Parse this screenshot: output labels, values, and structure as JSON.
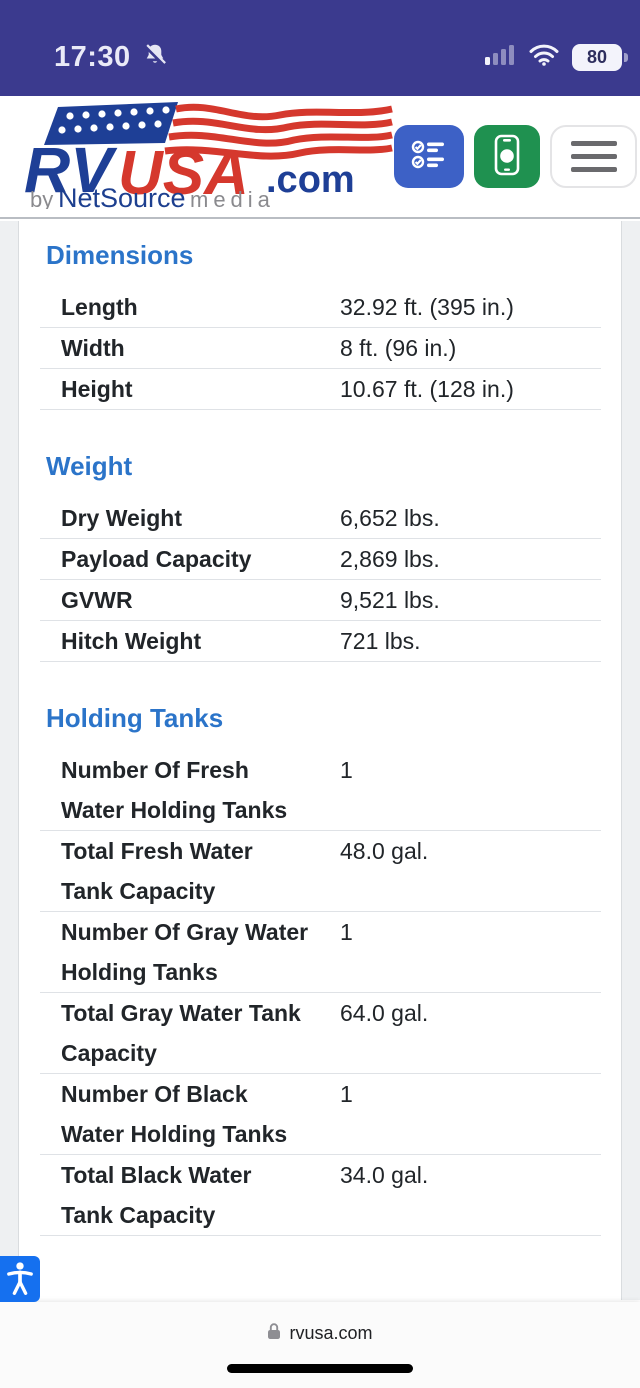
{
  "status_bar": {
    "time": "17:30",
    "battery_percent": "80",
    "icons": [
      "bell-slash-icon",
      "signal-icon",
      "wifi-icon",
      "battery-icon"
    ]
  },
  "header": {
    "logo": {
      "rv": "RV",
      "usa": "USA",
      "dotcom": ".com",
      "byline_by": "by",
      "byline_name": "NetSource",
      "byline_media": "media"
    },
    "buttons": [
      {
        "name": "checklist-button",
        "icon": "checklist-icon"
      },
      {
        "name": "phone-button",
        "icon": "phone-icon"
      },
      {
        "name": "menu-button",
        "icon": "hamburger-icon"
      }
    ]
  },
  "sections": [
    {
      "title": "Dimensions",
      "rows": [
        {
          "label": "Length",
          "value": "32.92 ft. (395 in.)"
        },
        {
          "label": "Width",
          "value": "8 ft. (96 in.)"
        },
        {
          "label": "Height",
          "value": "10.67 ft. (128 in.)"
        }
      ]
    },
    {
      "title": "Weight",
      "rows": [
        {
          "label": "Dry Weight",
          "value": "6,652 lbs."
        },
        {
          "label": "Payload Capacity",
          "value": "2,869 lbs."
        },
        {
          "label": "GVWR",
          "value": "9,521 lbs."
        },
        {
          "label": "Hitch Weight",
          "value": "721 lbs."
        }
      ]
    },
    {
      "title": "Holding Tanks",
      "rows": [
        {
          "label": "Number Of Fresh Water Holding Tanks",
          "value": "1"
        },
        {
          "label": "Total Fresh Water Tank Capacity",
          "value": "48.0 gal."
        },
        {
          "label": "Number Of Gray Water Holding Tanks",
          "value": "1"
        },
        {
          "label": "Total Gray Water Tank Capacity",
          "value": "64.0 gal."
        },
        {
          "label": "Number Of Black Water Holding Tanks",
          "value": "1"
        },
        {
          "label": "Total Black Water Tank Capacity",
          "value": "34.0 gal."
        }
      ]
    }
  ],
  "bottom_bar": {
    "url": "rvusa.com",
    "lock": "lock-icon"
  },
  "accessibility_widget": {
    "icon": "accessibility-icon"
  },
  "colors": {
    "status_bar_bg": "#3b3a8e",
    "section_title_blue": "#2b74c9",
    "checklist_button_blue": "#3d61c6",
    "phone_button_green": "#1f9150",
    "accessibility_blue": "#1570ef",
    "logo_blue": "#1e3f96",
    "logo_red": "#d5382d"
  }
}
